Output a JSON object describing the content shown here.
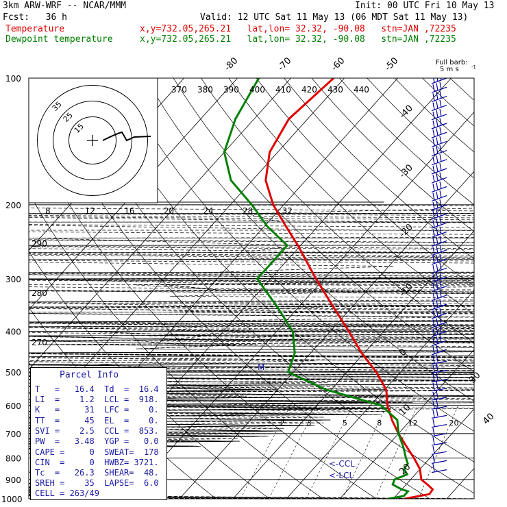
{
  "header": {
    "line1_left": "3km ARW-WRF -- NCAR/MMM",
    "line1_right": "Init: 00 UTC Fri 10 May 13",
    "line2_left": "Fcst:   36 h",
    "line2_right": "Valid: 12 UTC Sat 11 May 13 (06 MDT Sat 11 May 13)",
    "temp_label": "Temperature",
    "temp_info": "x,y=732.05,265.21   lat,lon= 32.32, -90.08   stn=JAN ,72235",
    "dew_label": "Dewpoint temperature",
    "dew_info": "x,y=732.05,265.21   lat,lon= 32.32, -90.08   stn=JAN ,72235"
  },
  "colors": {
    "temperature": "#e00000",
    "dewpoint": "#008000",
    "isotherm": "#000000",
    "isobar": "#000000",
    "theta": "#000000",
    "theta_e": "#000000",
    "mixing_ratio": "#000000",
    "barbs": "#0000a0",
    "parcel_text": "#1a1aa6"
  },
  "parcel": {
    "title": "Parcel Info",
    "rows": [
      "T   =   16.4  Td  =  16.4",
      "LI  =    1.2  LCL =  918.",
      "K   =     31  LFC =    0.",
      "TT  =     45  EL  =    0.",
      "SVI =    2.5  CCL =  853.",
      "PW  =   3.48  YGP =   0.0",
      "CAPE =     0  SWEAT=  178",
      "CIN  =     0  HWBZ= 3721.",
      "Tc  =   26.3  SHEAR=  48.",
      "SREH =    35  LAPSE=  6.0",
      "CELL = 263/49"
    ]
  },
  "annotations": {
    "ccl": "<-CCL",
    "lcl": "<-LCL",
    "marker": "M",
    "kts": "kts",
    "full_barb": "Full barb:",
    "full_barb_unit": "5 m s",
    "full_barb_exp": "-1"
  },
  "chart_data": {
    "type": "line",
    "diagram": "skew-T log-P",
    "pressure_levels": [
      100,
      200,
      300,
      400,
      500,
      600,
      700,
      800,
      900,
      1000
    ],
    "isotherm_labels": [
      -80,
      -70,
      -60,
      -50,
      -40,
      -30,
      -20,
      -10,
      0,
      10,
      20,
      30,
      40
    ],
    "theta_labels": [
      370,
      380,
      390,
      400,
      410,
      420,
      430,
      440
    ],
    "wind_speed_labels": [
      8,
      12,
      16,
      20,
      24,
      28,
      32
    ],
    "theta_e_labels": [
      290,
      280,
      270
    ],
    "mixing_ratio_labels": [
      2,
      3,
      5,
      8,
      12,
      20
    ],
    "hodograph_rings": [
      15,
      25,
      35
    ],
    "series": [
      {
        "name": "Temperature",
        "points": [
          [
            1000,
            22.1
          ],
          [
            975,
            26.0
          ],
          [
            950,
            25.8
          ],
          [
            925,
            24.0
          ],
          [
            900,
            22.0
          ],
          [
            850,
            20.0
          ],
          [
            800,
            17.0
          ],
          [
            750,
            13.6
          ],
          [
            700,
            10.0
          ],
          [
            650,
            6.5
          ],
          [
            600,
            3.2
          ],
          [
            550,
            0.3
          ],
          [
            500,
            -4.5
          ],
          [
            450,
            -10.5
          ],
          [
            400,
            -16.5
          ],
          [
            350,
            -23.5
          ],
          [
            300,
            -31.5
          ],
          [
            250,
            -40.5
          ],
          [
            225,
            -46.0
          ],
          [
            200,
            -52.0
          ],
          [
            175,
            -57.5
          ],
          [
            150,
            -61.5
          ],
          [
            125,
            -63.5
          ],
          [
            100,
            -62.0
          ]
        ]
      },
      {
        "name": "Dewpoint temperature",
        "points": [
          [
            1000,
            19.0
          ],
          [
            985,
            21.5
          ],
          [
            960,
            21.5
          ],
          [
            950,
            20.0
          ],
          [
            925,
            17.5
          ],
          [
            900,
            17.0
          ],
          [
            875,
            18.5
          ],
          [
            850,
            17.0
          ],
          [
            825,
            16.8
          ],
          [
            800,
            15.5
          ],
          [
            750,
            13.0
          ],
          [
            700,
            10.0
          ],
          [
            650,
            7.5
          ],
          [
            600,
            2.0
          ],
          [
            550,
            -11.0
          ],
          [
            500,
            -21.0
          ],
          [
            450,
            -23.0
          ],
          [
            400,
            -27.0
          ],
          [
            350,
            -34.0
          ],
          [
            300,
            -42.5
          ],
          [
            250,
            -42.5
          ],
          [
            225,
            -49.5
          ],
          [
            200,
            -56.0
          ],
          [
            175,
            -64.0
          ],
          [
            150,
            -70.0
          ],
          [
            125,
            -73.5
          ],
          [
            100,
            -76.0
          ]
        ]
      }
    ]
  }
}
